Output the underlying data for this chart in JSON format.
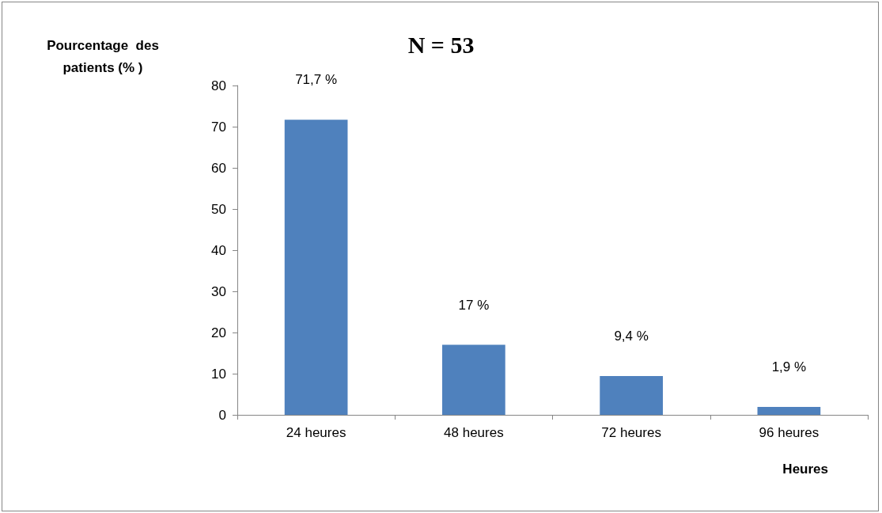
{
  "chart_data": {
    "type": "bar",
    "title": "N = 53",
    "ylabel": "Pourcentage  des\npatients (% )",
    "xlabel": "Heures",
    "categories": [
      "24 heures",
      "48 heures",
      "72 heures",
      "96 heures"
    ],
    "values": [
      71.7,
      17,
      9.4,
      1.9
    ],
    "value_labels": [
      "71,7 %",
      "17 %",
      "9,4 %",
      "1,9 %"
    ],
    "color": "#4f81bd",
    "ylim": [
      0,
      80
    ],
    "yticks": [
      0,
      10,
      20,
      30,
      40,
      50,
      60,
      70,
      80
    ],
    "grid": false
  }
}
